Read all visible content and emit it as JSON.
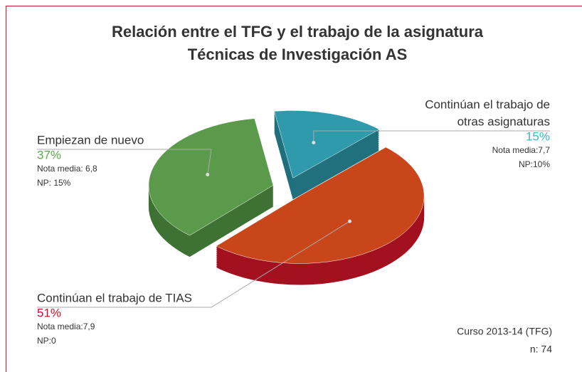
{
  "chart_data": {
    "type": "pie3d",
    "title": [
      "Relación entre el TFG y el trabajo de la asignatura",
      "Técnicas de Investigación AS"
    ],
    "categories": [
      [
        "Continúan el trabajo de",
        "otras asignaturas"
      ],
      [
        "Continúan el trabajo de TIAS"
      ],
      [
        "Empiezan de nuevo"
      ]
    ],
    "values": [
      15,
      51,
      37
    ],
    "value_labels": [
      "15%",
      "51%",
      "37%"
    ],
    "colors": [
      "#2e9aab",
      "#c8461a",
      "#5a9a4a"
    ],
    "side_colors": [
      "#21707d",
      "#a3101f",
      "#3e7234"
    ],
    "label_colors": [
      "#3bb7c9",
      "#d0102a",
      "#5aab4a"
    ],
    "notes": [
      [
        "Nota media:7,7",
        "NP:10%"
      ],
      [
        "Nota media:7,9",
        "NP:0"
      ],
      [
        "Nota media: 6,8",
        "NP: 15%"
      ]
    ],
    "footer": [
      "Curso 2013-14 (TFG)",
      "n: 74"
    ]
  }
}
